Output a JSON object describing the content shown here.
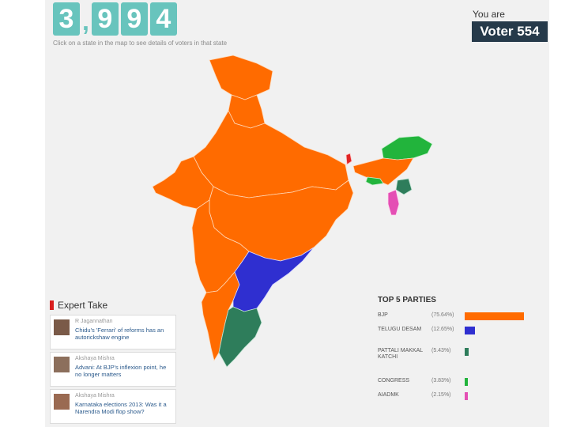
{
  "counter": {
    "d1": "3",
    "sep": ",",
    "d2": "9",
    "d3": "9",
    "d4": "4"
  },
  "hint": "Click on a state in the map to see details of voters in that state",
  "voter": {
    "label": "You are",
    "id": "Voter 554"
  },
  "colors": {
    "bjp": "#ff6b00",
    "tdp": "#2f2fd0",
    "pmk": "#2e7d5b",
    "congress": "#22b43c",
    "aiadmk": "#e44fb4",
    "accent": "#68c4bd"
  },
  "expert": {
    "title": "Expert Take",
    "items": [
      {
        "author": "R Jagannathan",
        "text": "Chidu's 'Ferrari' of reforms has an autorickshaw engine"
      },
      {
        "author": "Akshaya Mishra",
        "text": "Advani: At BJP's inflexion point, he no longer matters"
      },
      {
        "author": "Akshaya Mishra",
        "text": "Karnataka elections 2013: Was it a Narendra Modi flop show?"
      }
    ]
  },
  "parties": {
    "title": "TOP 5 PARTIES",
    "items": [
      {
        "name": "BJP",
        "pct": "(75.64%)",
        "share": 75.64,
        "color": "#ff6b00"
      },
      {
        "name": "TELUGU DESAM",
        "pct": "(12.65%)",
        "share": 12.65,
        "color": "#2f2fd0"
      },
      {
        "name": "PATTALI MAKKAL KATCHI",
        "pct": "(5.43%)",
        "share": 5.43,
        "color": "#2e7d5b"
      },
      {
        "name": "CONGRESS",
        "pct": "(3.83%)",
        "share": 3.83,
        "color": "#22b43c"
      },
      {
        "name": "AIADMK",
        "pct": "(2.15%)",
        "share": 2.15,
        "color": "#e44fb4"
      }
    ]
  }
}
